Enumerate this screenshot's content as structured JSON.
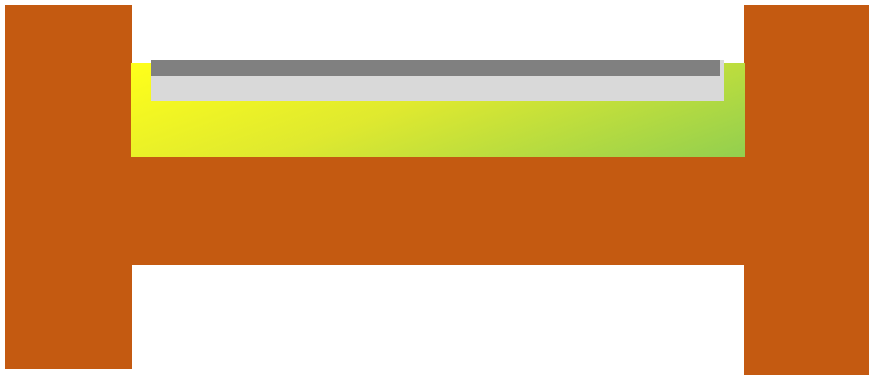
{
  "colors": {
    "structure": "#c45a11",
    "background": "#ffffff",
    "gradient_start": "#ffff1a",
    "gradient_mid": "#dfe92f",
    "gradient_end": "#92cf4f",
    "tray": "#d9d9d9",
    "tray_bar": "#808080"
  }
}
